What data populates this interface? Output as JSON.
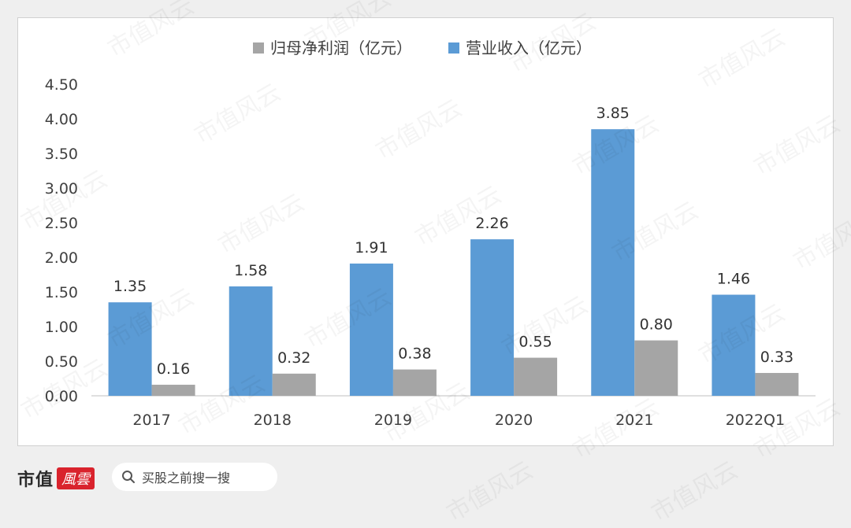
{
  "chart_data": {
    "type": "bar",
    "categories": [
      "2017",
      "2018",
      "2019",
      "2020",
      "2021",
      "2022Q1"
    ],
    "series": [
      {
        "name": "营业收入（亿元）",
        "color": "#5b9bd5",
        "values": [
          1.35,
          1.58,
          1.91,
          2.26,
          3.85,
          1.46
        ]
      },
      {
        "name": "归母净利润（亿元）",
        "color": "#a5a5a5",
        "values": [
          0.16,
          0.32,
          0.38,
          0.55,
          0.8,
          0.33
        ]
      }
    ],
    "legend": [
      {
        "name": "归母净利润（亿元）",
        "color": "#a5a5a5"
      },
      {
        "name": "营业收入（亿元）",
        "color": "#5b9bd5"
      }
    ],
    "legend_position": "top-center",
    "ylim": [
      0,
      4.5
    ],
    "yticks": [
      "0.00",
      "0.50",
      "1.00",
      "1.50",
      "2.00",
      "2.50",
      "3.00",
      "3.50",
      "4.00",
      "4.50"
    ],
    "grid": false
  },
  "footer": {
    "brand_text": "市值",
    "brand_logo_text": "風雲",
    "search_icon": "search-icon",
    "search_text": "买股之前搜一搜"
  },
  "watermark_text": "市值风云"
}
